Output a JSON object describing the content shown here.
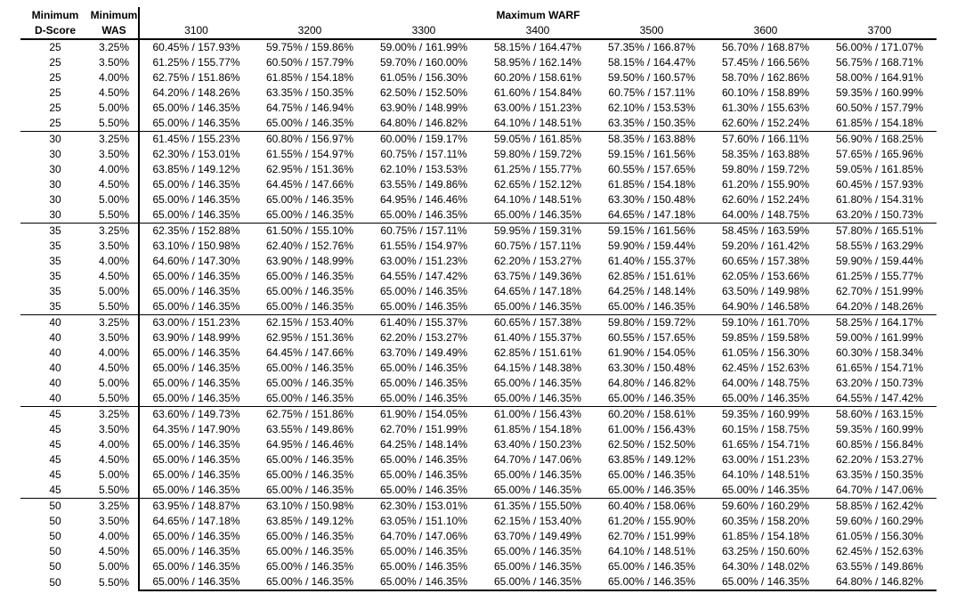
{
  "colors": {
    "text": "#000000",
    "background": "#ffffff",
    "rule": "#000000"
  },
  "table": {
    "row_header_1": {
      "line1": "Minimum",
      "line2": "D-Score"
    },
    "row_header_2": {
      "line1": "Minimum",
      "line2": "WAS"
    },
    "span_header": "Maximum WARF",
    "warf_columns": [
      "3100",
      "3200",
      "3300",
      "3400",
      "3500",
      "3600",
      "3700"
    ],
    "groups": [
      {
        "d_score": "25",
        "rows": [
          {
            "was": "3.25%",
            "values": [
              "60.45% / 157.93%",
              "59.75% / 159.86%",
              "59.00% / 161.99%",
              "58.15% / 164.47%",
              "57.35% / 166.87%",
              "56.70% / 168.87%",
              "56.00% / 171.07%"
            ]
          },
          {
            "was": "3.50%",
            "values": [
              "61.25% / 155.77%",
              "60.50% / 157.79%",
              "59.70% / 160.00%",
              "58.95% / 162.14%",
              "58.15% / 164.47%",
              "57.45% / 166.56%",
              "56.75% / 168.71%"
            ]
          },
          {
            "was": "4.00%",
            "values": [
              "62.75% / 151.86%",
              "61.85% / 154.18%",
              "61.05% / 156.30%",
              "60.20% / 158.61%",
              "59.50% / 160.57%",
              "58.70% / 162.86%",
              "58.00% / 164.91%"
            ]
          },
          {
            "was": "4.50%",
            "values": [
              "64.20% / 148.26%",
              "63.35% / 150.35%",
              "62.50% / 152.50%",
              "61.60% / 154.84%",
              "60.75% / 157.11%",
              "60.10% / 158.89%",
              "59.35% / 160.99%"
            ]
          },
          {
            "was": "5.00%",
            "values": [
              "65.00% / 146.35%",
              "64.75% / 146.94%",
              "63.90% / 148.99%",
              "63.00% / 151.23%",
              "62.10% / 153.53%",
              "61.30% / 155.63%",
              "60.50% / 157.79%"
            ]
          },
          {
            "was": "5.50%",
            "values": [
              "65.00% / 146.35%",
              "65.00% / 146.35%",
              "64.80% / 146.82%",
              "64.10% / 148.51%",
              "63.35% / 150.35%",
              "62.60% / 152.24%",
              "61.85% / 154.18%"
            ]
          }
        ]
      },
      {
        "d_score": "30",
        "rows": [
          {
            "was": "3.25%",
            "values": [
              "61.45% / 155.23%",
              "60.80% / 156.97%",
              "60.00% / 159.17%",
              "59.05% / 161.85%",
              "58.35% / 163.88%",
              "57.60% / 166.11%",
              "56.90% / 168.25%"
            ]
          },
          {
            "was": "3.50%",
            "values": [
              "62.30% / 153.01%",
              "61.55% / 154.97%",
              "60.75% / 157.11%",
              "59.80% / 159.72%",
              "59.15% / 161.56%",
              "58.35% / 163.88%",
              "57.65% / 165.96%"
            ]
          },
          {
            "was": "4.00%",
            "values": [
              "63.85% / 149.12%",
              "62.95% / 151.36%",
              "62.10% / 153.53%",
              "61.25% / 155.77%",
              "60.55% / 157.65%",
              "59.80% / 159.72%",
              "59.05% / 161.85%"
            ]
          },
          {
            "was": "4.50%",
            "values": [
              "65.00% / 146.35%",
              "64.45% / 147.66%",
              "63.55% / 149.86%",
              "62.65% / 152.12%",
              "61.85% / 154.18%",
              "61.20% / 155.90%",
              "60.45% / 157.93%"
            ]
          },
          {
            "was": "5.00%",
            "values": [
              "65.00% / 146.35%",
              "65.00% / 146.35%",
              "64.95% / 146.46%",
              "64.10% / 148.51%",
              "63.30% / 150.48%",
              "62.60% / 152.24%",
              "61.80% / 154.31%"
            ]
          },
          {
            "was": "5.50%",
            "values": [
              "65.00% / 146.35%",
              "65.00% / 146.35%",
              "65.00% / 146.35%",
              "65.00% / 146.35%",
              "64.65% / 147.18%",
              "64.00% / 148.75%",
              "63.20% / 150.73%"
            ]
          }
        ]
      },
      {
        "d_score": "35",
        "rows": [
          {
            "was": "3.25%",
            "values": [
              "62.35% / 152.88%",
              "61.50% / 155.10%",
              "60.75% / 157.11%",
              "59.95% / 159.31%",
              "59.15% / 161.56%",
              "58.45% / 163.59%",
              "57.80% / 165.51%"
            ]
          },
          {
            "was": "3.50%",
            "values": [
              "63.10% / 150.98%",
              "62.40% / 152.76%",
              "61.55% / 154.97%",
              "60.75% / 157.11%",
              "59.90% / 159.44%",
              "59.20% / 161.42%",
              "58.55% / 163.29%"
            ]
          },
          {
            "was": "4.00%",
            "values": [
              "64.60% / 147.30%",
              "63.90% / 148.99%",
              "63.00% / 151.23%",
              "62.20% / 153.27%",
              "61.40% / 155.37%",
              "60.65% / 157.38%",
              "59.90% / 159.44%"
            ]
          },
          {
            "was": "4.50%",
            "values": [
              "65.00% / 146.35%",
              "65.00% / 146.35%",
              "64.55% / 147.42%",
              "63.75% / 149.36%",
              "62.85% / 151.61%",
              "62.05% / 153.66%",
              "61.25% / 155.77%"
            ]
          },
          {
            "was": "5.00%",
            "values": [
              "65.00% / 146.35%",
              "65.00% / 146.35%",
              "65.00% / 146.35%",
              "64.65% / 147.18%",
              "64.25% / 148.14%",
              "63.50% / 149.98%",
              "62.70% / 151.99%"
            ]
          },
          {
            "was": "5.50%",
            "values": [
              "65.00% / 146.35%",
              "65.00% / 146.35%",
              "65.00% / 146.35%",
              "65.00% / 146.35%",
              "65.00% / 146.35%",
              "64.90% / 146.58%",
              "64.20% / 148.26%"
            ]
          }
        ]
      },
      {
        "d_score": "40",
        "rows": [
          {
            "was": "3.25%",
            "values": [
              "63.00% / 151.23%",
              "62.15% / 153.40%",
              "61.40% / 155.37%",
              "60.65% / 157.38%",
              "59.80% / 159.72%",
              "59.10% / 161.70%",
              "58.25% / 164.17%"
            ]
          },
          {
            "was": "3.50%",
            "values": [
              "63.90% / 148.99%",
              "62.95% / 151.36%",
              "62.20% / 153.27%",
              "61.40% / 155.37%",
              "60.55% / 157.65%",
              "59.85% / 159.58%",
              "59.00% / 161.99%"
            ]
          },
          {
            "was": "4.00%",
            "values": [
              "65.00% / 146.35%",
              "64.45% / 147.66%",
              "63.70% / 149.49%",
              "62.85% / 151.61%",
              "61.90% / 154.05%",
              "61.05% / 156.30%",
              "60.30% / 158.34%"
            ]
          },
          {
            "was": "4.50%",
            "values": [
              "65.00% / 146.35%",
              "65.00% / 146.35%",
              "65.00% / 146.35%",
              "64.15% / 148.38%",
              "63.30% / 150.48%",
              "62.45% / 152.63%",
              "61.65% / 154.71%"
            ]
          },
          {
            "was": "5.00%",
            "values": [
              "65.00% / 146.35%",
              "65.00% / 146.35%",
              "65.00% / 146.35%",
              "65.00% / 146.35%",
              "64.80% / 146.82%",
              "64.00% / 148.75%",
              "63.20% / 150.73%"
            ]
          },
          {
            "was": "5.50%",
            "values": [
              "65.00% / 146.35%",
              "65.00% / 146.35%",
              "65.00% / 146.35%",
              "65.00% / 146.35%",
              "65.00% / 146.35%",
              "65.00% / 146.35%",
              "64.55% / 147.42%"
            ]
          }
        ]
      },
      {
        "d_score": "45",
        "rows": [
          {
            "was": "3.25%",
            "values": [
              "63.60% / 149.73%",
              "62.75% / 151.86%",
              "61.90% / 154.05%",
              "61.00% / 156.43%",
              "60.20% / 158.61%",
              "59.35% / 160.99%",
              "58.60% / 163.15%"
            ]
          },
          {
            "was": "3.50%",
            "values": [
              "64.35% / 147.90%",
              "63.55% / 149.86%",
              "62.70% / 151.99%",
              "61.85% / 154.18%",
              "61.00% / 156.43%",
              "60.15% / 158.75%",
              "59.35% / 160.99%"
            ]
          },
          {
            "was": "4.00%",
            "values": [
              "65.00% / 146.35%",
              "64.95% / 146.46%",
              "64.25% / 148.14%",
              "63.40% / 150.23%",
              "62.50% / 152.50%",
              "61.65% / 154.71%",
              "60.85% / 156.84%"
            ]
          },
          {
            "was": "4.50%",
            "values": [
              "65.00% / 146.35%",
              "65.00% / 146.35%",
              "65.00% / 146.35%",
              "64.70% / 147.06%",
              "63.85% / 149.12%",
              "63.00% / 151.23%",
              "62.20% / 153.27%"
            ]
          },
          {
            "was": "5.00%",
            "values": [
              "65.00% / 146.35%",
              "65.00% / 146.35%",
              "65.00% / 146.35%",
              "65.00% / 146.35%",
              "65.00% / 146.35%",
              "64.10% / 148.51%",
              "63.35% / 150.35%"
            ]
          },
          {
            "was": "5.50%",
            "values": [
              "65.00% / 146.35%",
              "65.00% / 146.35%",
              "65.00% / 146.35%",
              "65.00% / 146.35%",
              "65.00% / 146.35%",
              "65.00% / 146.35%",
              "64.70% / 147.06%"
            ]
          }
        ]
      },
      {
        "d_score": "50",
        "rows": [
          {
            "was": "3.25%",
            "values": [
              "63.95% / 148.87%",
              "63.10% / 150.98%",
              "62.30% / 153.01%",
              "61.35% / 155.50%",
              "60.40% / 158.06%",
              "59.60% / 160.29%",
              "58.85% / 162.42%"
            ]
          },
          {
            "was": "3.50%",
            "values": [
              "64.65% / 147.18%",
              "63.85% / 149.12%",
              "63.05% / 151.10%",
              "62.15% / 153.40%",
              "61.20% / 155.90%",
              "60.35% / 158.20%",
              "59.60% / 160.29%"
            ]
          },
          {
            "was": "4.00%",
            "values": [
              "65.00% / 146.35%",
              "65.00% / 146.35%",
              "64.70% / 147.06%",
              "63.70% / 149.49%",
              "62.70% / 151.99%",
              "61.85% / 154.18%",
              "61.05% / 156.30%"
            ]
          },
          {
            "was": "4.50%",
            "values": [
              "65.00% / 146.35%",
              "65.00% / 146.35%",
              "65.00% / 146.35%",
              "65.00% / 146.35%",
              "64.10% / 148.51%",
              "63.25% / 150.60%",
              "62.45% / 152.63%"
            ]
          },
          {
            "was": "5.00%",
            "values": [
              "65.00% / 146.35%",
              "65.00% / 146.35%",
              "65.00% / 146.35%",
              "65.00% / 146.35%",
              "65.00% / 146.35%",
              "64.30% / 148.02%",
              "63.55% / 149.86%"
            ]
          },
          {
            "was": "5.50%",
            "values": [
              "65.00% / 146.35%",
              "65.00% / 146.35%",
              "65.00% / 146.35%",
              "65.00% / 146.35%",
              "65.00% / 146.35%",
              "65.00% / 146.35%",
              "64.80% / 146.82%"
            ]
          }
        ]
      }
    ]
  }
}
